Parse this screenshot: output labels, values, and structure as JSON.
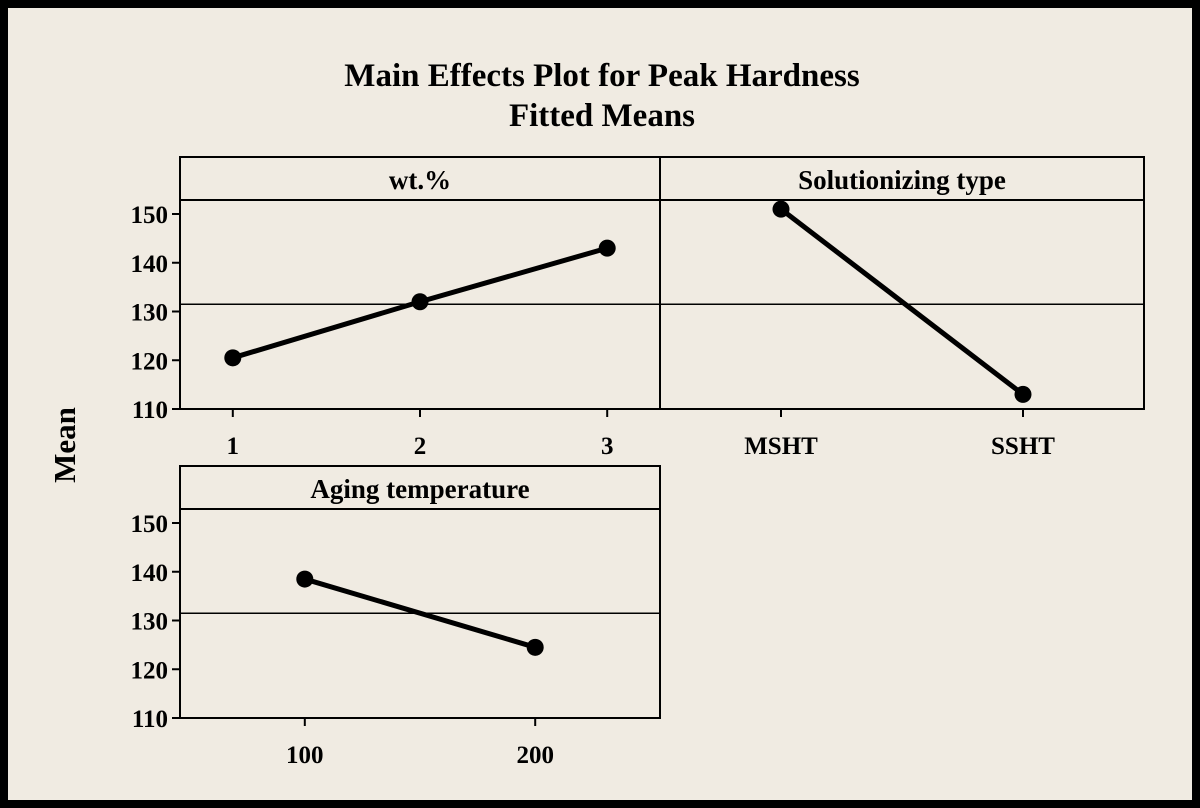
{
  "chart_data": {
    "type": "line",
    "title": "Main Effects Plot for Peak Hardness",
    "subtitle": "Fitted Means",
    "ylabel": "Mean",
    "ylim": [
      110,
      150
    ],
    "yticks": [
      110,
      120,
      130,
      140,
      150
    ],
    "reference_line": 131.5,
    "grid": false,
    "panels": [
      {
        "title": "wt.%",
        "categories": [
          "1",
          "2",
          "3"
        ],
        "values": [
          120.5,
          132,
          143
        ]
      },
      {
        "title": "Solutionizing type",
        "categories": [
          "MSHT",
          "SSHT"
        ],
        "values": [
          151,
          113
        ]
      },
      {
        "title": "Aging temperature",
        "categories": [
          "100",
          "200"
        ],
        "values": [
          138.5,
          124.5
        ]
      }
    ]
  },
  "colors": {
    "background": "#f0ebe2",
    "line": "#000000",
    "frame": "#000000"
  }
}
